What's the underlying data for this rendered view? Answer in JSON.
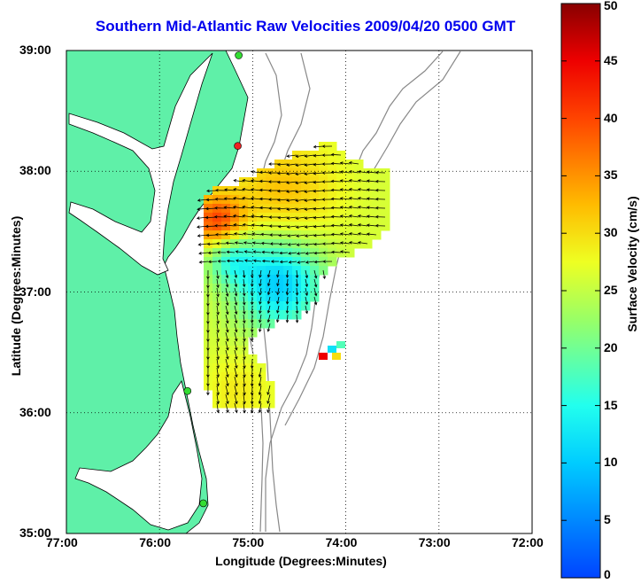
{
  "title": "Southern Mid-Atlantic Raw Velocities 2009/04/20 0500 GMT",
  "map": {
    "x_label": "Longitude (Degrees:Minutes)",
    "y_label": "Latitude (Degrees:Minutes)",
    "lon_range": [
      -77,
      -72
    ],
    "lat_range": [
      35,
      39
    ],
    "x_ticks": [
      "77:00",
      "76:00",
      "75:00",
      "74:00",
      "73:00",
      "72:00"
    ],
    "y_ticks": [
      "39:00",
      "38:00",
      "37:00",
      "36:00",
      "35:00"
    ],
    "land_color": "#5ff0a8",
    "stations": [
      {
        "lon": -75.15,
        "lat": 38.96,
        "color": "#33dd33"
      },
      {
        "lon": -75.16,
        "lat": 38.21,
        "color": "#ee2222"
      },
      {
        "lon": -75.7,
        "lat": 36.18,
        "color": "#33dd33"
      },
      {
        "lon": -75.53,
        "lat": 35.25,
        "color": "#33dd33"
      }
    ]
  },
  "colorbar": {
    "label": "Surface Velocity (cm/s)",
    "min": 0,
    "max": 50,
    "ticks": [
      "0",
      "5",
      "10",
      "15",
      "20",
      "25",
      "30",
      "35",
      "40",
      "45",
      "50"
    ]
  }
}
